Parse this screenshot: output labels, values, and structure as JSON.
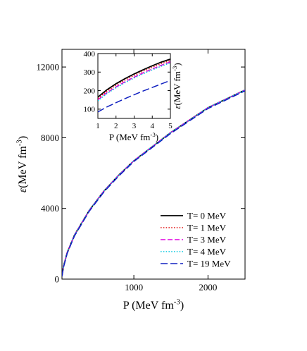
{
  "chart_data": [
    {
      "type": "line",
      "xlabel": {
        "base": "P (MeV fm",
        "exp": "-3",
        "close": ")"
      },
      "ylabel": {
        "sym": "ε",
        "base": "(MeV fm",
        "exp": "-3",
        "close": ")"
      },
      "xlim": [
        30,
        2500
      ],
      "ylim": [
        0,
        13000
      ],
      "xticks": [
        1000,
        2000
      ],
      "xtick_labels": [
        "1000",
        "2000"
      ],
      "yticks": [
        0,
        4000,
        8000,
        12000
      ],
      "ytick_labels": [
        "0",
        "4000",
        "8000",
        "12000"
      ],
      "legend": {
        "placement": "bottom-right"
      },
      "series": [
        {
          "name": "T= 0 MeV",
          "color": "#000000",
          "dash": "solid",
          "x": [
            30,
            50,
            100,
            200,
            400,
            600,
            800,
            1000,
            1500,
            2000,
            2500
          ],
          "y": [
            180,
            700,
            1500,
            2500,
            3900,
            5000,
            5900,
            6700,
            8300,
            9700,
            10700
          ]
        },
        {
          "name": "T= 1 MeV",
          "color": "#e01010",
          "dash": "dotted",
          "x": [
            30,
            50,
            100,
            200,
            400,
            600,
            800,
            1000,
            1500,
            2000,
            2500
          ],
          "y": [
            180,
            700,
            1500,
            2500,
            3900,
            5000,
            5900,
            6700,
            8300,
            9700,
            10700
          ]
        },
        {
          "name": "T= 3 MeV",
          "color": "#e000e0",
          "dash": "dashed",
          "x": [
            30,
            50,
            100,
            200,
            400,
            600,
            800,
            1000,
            1500,
            2000,
            2500
          ],
          "y": [
            180,
            700,
            1500,
            2500,
            3900,
            5000,
            5900,
            6700,
            8300,
            9700,
            10700
          ]
        },
        {
          "name": "T= 4 MeV",
          "color": "#00c8e0",
          "dash": "dotted",
          "x": [
            30,
            50,
            100,
            200,
            400,
            600,
            800,
            1000,
            1500,
            2000,
            2500
          ],
          "y": [
            180,
            700,
            1500,
            2500,
            3900,
            5000,
            5900,
            6700,
            8300,
            9700,
            10700
          ]
        },
        {
          "name": "T= 19 MeV",
          "color": "#1020c0",
          "dash": "longdash",
          "x": [
            30,
            50,
            100,
            200,
            400,
            600,
            800,
            1000,
            1500,
            2000,
            2500
          ],
          "y": [
            150,
            650,
            1450,
            2450,
            3850,
            4950,
            5850,
            6650,
            8250,
            9650,
            10650
          ]
        }
      ]
    },
    {
      "type": "line",
      "xlabel": {
        "base": "P (MeV fm",
        "exp": "-3",
        "close": ")"
      },
      "ylabel": {
        "sym": "ε",
        "base": "(MeV fm",
        "exp": "-3",
        "close": ")"
      },
      "xlim": [
        1,
        5
      ],
      "ylim": [
        50,
        400
      ],
      "xticks": [
        1,
        2,
        3,
        4,
        5
      ],
      "xtick_labels": [
        "1",
        "2",
        "3",
        "4",
        "5"
      ],
      "yticks": [
        100,
        200,
        300,
        400
      ],
      "ytick_labels": [
        "100",
        "200",
        "300",
        "400"
      ],
      "series": [
        {
          "name": "T= 0 MeV",
          "color": "#000000",
          "dash": "solid",
          "x": [
            1,
            1.5,
            2,
            2.5,
            3,
            3.5,
            4,
            4.5,
            5
          ],
          "y": [
            165,
            205,
            237,
            265,
            290,
            313,
            334,
            354,
            370
          ]
        },
        {
          "name": "T= 1 MeV",
          "color": "#e01010",
          "dash": "dotted",
          "x": [
            1,
            1.5,
            2,
            2.5,
            3,
            3.5,
            4,
            4.5,
            5
          ],
          "y": [
            158,
            197,
            229,
            257,
            282,
            305,
            326,
            346,
            362
          ]
        },
        {
          "name": "T= 3 MeV",
          "color": "#e000e0",
          "dash": "dashed",
          "x": [
            1,
            1.5,
            2,
            2.5,
            3,
            3.5,
            4,
            4.5,
            5
          ],
          "y": [
            150,
            189,
            220,
            248,
            273,
            296,
            317,
            337,
            355
          ]
        },
        {
          "name": "T= 4 MeV",
          "color": "#00c8e0",
          "dash": "dotted",
          "x": [
            1,
            1.5,
            2,
            2.5,
            3,
            3.5,
            4,
            4.5,
            5
          ],
          "y": [
            145,
            184,
            215,
            243,
            268,
            291,
            312,
            332,
            350
          ]
        },
        {
          "name": "T= 19 MeV",
          "color": "#1020c0",
          "dash": "longdash",
          "x": [
            1,
            1.5,
            2,
            2.5,
            3,
            3.5,
            4,
            4.5,
            5
          ],
          "y": [
            85,
            112,
            135,
            157,
            178,
            198,
            217,
            236,
            255
          ]
        }
      ]
    }
  ]
}
